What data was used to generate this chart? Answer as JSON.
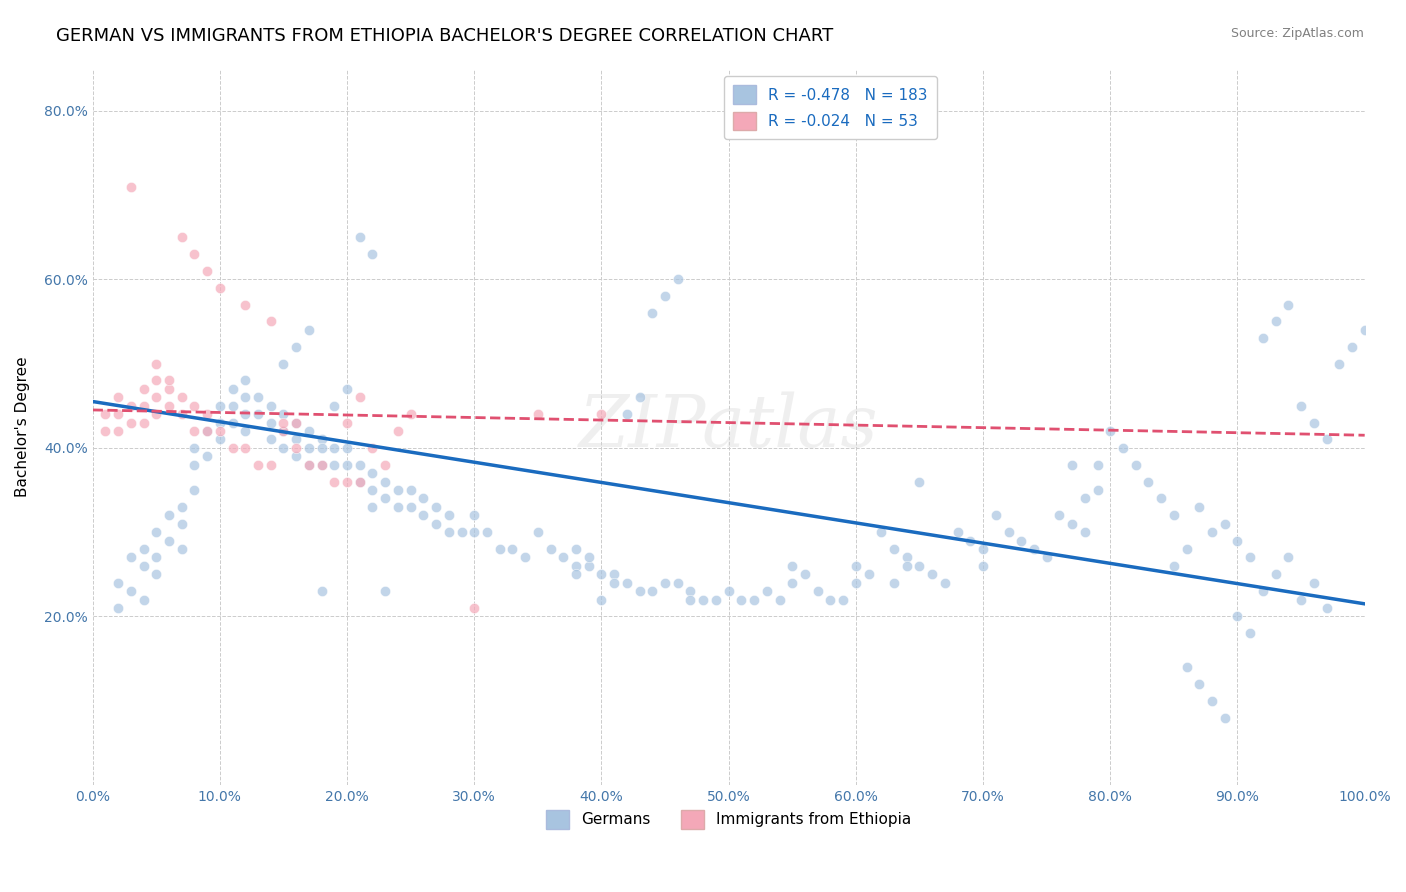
{
  "title": "GERMAN VS IMMIGRANTS FROM ETHIOPIA BACHELOR'S DEGREE CORRELATION CHART",
  "source": "Source: ZipAtlas.com",
  "ylabel": "Bachelor's Degree",
  "watermark": "ZIPatlas",
  "blue_R": -0.478,
  "blue_N": 183,
  "pink_R": -0.024,
  "pink_N": 53,
  "blue_color": "#a8c4e0",
  "pink_color": "#f4a8b8",
  "blue_line_color": "#1a6bbf",
  "pink_line_color": "#e05070",
  "legend_blue_label": "Germans",
  "legend_pink_label": "Immigrants from Ethiopia",
  "xlim": [
    0,
    1.0
  ],
  "ylim": [
    0,
    0.85
  ],
  "background_color": "#ffffff",
  "grid_color": "#cccccc",
  "blue_scatter_x": [
    0.02,
    0.02,
    0.03,
    0.03,
    0.04,
    0.04,
    0.04,
    0.05,
    0.05,
    0.05,
    0.06,
    0.06,
    0.07,
    0.07,
    0.07,
    0.08,
    0.08,
    0.08,
    0.09,
    0.09,
    0.1,
    0.1,
    0.1,
    0.11,
    0.11,
    0.11,
    0.12,
    0.12,
    0.12,
    0.12,
    0.13,
    0.13,
    0.14,
    0.14,
    0.14,
    0.15,
    0.15,
    0.15,
    0.16,
    0.16,
    0.16,
    0.17,
    0.17,
    0.17,
    0.18,
    0.18,
    0.18,
    0.19,
    0.19,
    0.2,
    0.2,
    0.21,
    0.21,
    0.22,
    0.22,
    0.22,
    0.23,
    0.23,
    0.24,
    0.24,
    0.25,
    0.25,
    0.26,
    0.26,
    0.27,
    0.27,
    0.28,
    0.28,
    0.29,
    0.3,
    0.3,
    0.31,
    0.32,
    0.33,
    0.34,
    0.35,
    0.36,
    0.37,
    0.38,
    0.38,
    0.39,
    0.4,
    0.41,
    0.42,
    0.43,
    0.44,
    0.45,
    0.46,
    0.47,
    0.48,
    0.49,
    0.5,
    0.51,
    0.52,
    0.53,
    0.54,
    0.55,
    0.55,
    0.56,
    0.57,
    0.58,
    0.59,
    0.6,
    0.6,
    0.61,
    0.62,
    0.63,
    0.64,
    0.65,
    0.66,
    0.67,
    0.68,
    0.69,
    0.7,
    0.7,
    0.71,
    0.72,
    0.73,
    0.74,
    0.75,
    0.76,
    0.77,
    0.78,
    0.79,
    0.8,
    0.81,
    0.82,
    0.83,
    0.84,
    0.85,
    0.86,
    0.87,
    0.88,
    0.89,
    0.9,
    0.91,
    0.92,
    0.93,
    0.94,
    0.95,
    0.96,
    0.97,
    0.98,
    0.99,
    1.0,
    0.15,
    0.16,
    0.17,
    0.18,
    0.19,
    0.2,
    0.21,
    0.22,
    0.23,
    0.38,
    0.39,
    0.4,
    0.41,
    0.42,
    0.43,
    0.44,
    0.45,
    0.46,
    0.47,
    0.63,
    0.64,
    0.65,
    0.77,
    0.78,
    0.79,
    0.87,
    0.93,
    0.94,
    0.95,
    0.96,
    0.85,
    0.86,
    0.88,
    0.89,
    0.9,
    0.91,
    0.92,
    0.97
  ],
  "blue_scatter_y": [
    0.24,
    0.21,
    0.27,
    0.23,
    0.28,
    0.26,
    0.22,
    0.3,
    0.27,
    0.25,
    0.32,
    0.29,
    0.33,
    0.31,
    0.28,
    0.4,
    0.38,
    0.35,
    0.42,
    0.39,
    0.45,
    0.43,
    0.41,
    0.47,
    0.45,
    0.43,
    0.48,
    0.46,
    0.44,
    0.42,
    0.46,
    0.44,
    0.45,
    0.43,
    0.41,
    0.44,
    0.42,
    0.4,
    0.43,
    0.41,
    0.39,
    0.42,
    0.4,
    0.38,
    0.41,
    0.4,
    0.38,
    0.4,
    0.38,
    0.4,
    0.38,
    0.38,
    0.36,
    0.37,
    0.35,
    0.33,
    0.36,
    0.34,
    0.35,
    0.33,
    0.35,
    0.33,
    0.34,
    0.32,
    0.33,
    0.31,
    0.32,
    0.3,
    0.3,
    0.32,
    0.3,
    0.3,
    0.28,
    0.28,
    0.27,
    0.3,
    0.28,
    0.27,
    0.28,
    0.26,
    0.26,
    0.25,
    0.25,
    0.24,
    0.23,
    0.23,
    0.24,
    0.24,
    0.23,
    0.22,
    0.22,
    0.23,
    0.22,
    0.22,
    0.23,
    0.22,
    0.26,
    0.24,
    0.25,
    0.23,
    0.22,
    0.22,
    0.26,
    0.24,
    0.25,
    0.3,
    0.28,
    0.27,
    0.26,
    0.25,
    0.24,
    0.3,
    0.29,
    0.28,
    0.26,
    0.32,
    0.3,
    0.29,
    0.28,
    0.27,
    0.32,
    0.31,
    0.3,
    0.38,
    0.42,
    0.4,
    0.38,
    0.36,
    0.34,
    0.32,
    0.14,
    0.12,
    0.1,
    0.08,
    0.2,
    0.18,
    0.53,
    0.55,
    0.57,
    0.45,
    0.43,
    0.41,
    0.5,
    0.52,
    0.54,
    0.5,
    0.52,
    0.54,
    0.23,
    0.45,
    0.47,
    0.65,
    0.63,
    0.23,
    0.25,
    0.27,
    0.22,
    0.24,
    0.44,
    0.46,
    0.56,
    0.58,
    0.6,
    0.22,
    0.24,
    0.26,
    0.36,
    0.38,
    0.34,
    0.35,
    0.33,
    0.25,
    0.27,
    0.22,
    0.24,
    0.26,
    0.28,
    0.3,
    0.31,
    0.29,
    0.27,
    0.23,
    0.21
  ],
  "pink_scatter_x": [
    0.01,
    0.01,
    0.02,
    0.02,
    0.02,
    0.03,
    0.03,
    0.04,
    0.04,
    0.04,
    0.05,
    0.05,
    0.05,
    0.06,
    0.06,
    0.07,
    0.07,
    0.08,
    0.08,
    0.09,
    0.09,
    0.1,
    0.11,
    0.12,
    0.13,
    0.14,
    0.15,
    0.16,
    0.17,
    0.18,
    0.19,
    0.2,
    0.21,
    0.22,
    0.23,
    0.24,
    0.25,
    0.3,
    0.35,
    0.4,
    0.15,
    0.16,
    0.2,
    0.07,
    0.08,
    0.09,
    0.1,
    0.03,
    0.12,
    0.14,
    0.05,
    0.06,
    0.21
  ],
  "pink_scatter_y": [
    0.44,
    0.42,
    0.46,
    0.44,
    0.42,
    0.45,
    0.43,
    0.47,
    0.45,
    0.43,
    0.48,
    0.46,
    0.44,
    0.47,
    0.45,
    0.46,
    0.44,
    0.45,
    0.42,
    0.44,
    0.42,
    0.42,
    0.4,
    0.4,
    0.38,
    0.38,
    0.42,
    0.4,
    0.38,
    0.38,
    0.36,
    0.36,
    0.36,
    0.4,
    0.38,
    0.42,
    0.44,
    0.21,
    0.44,
    0.44,
    0.43,
    0.43,
    0.43,
    0.65,
    0.63,
    0.61,
    0.59,
    0.71,
    0.57,
    0.55,
    0.5,
    0.48,
    0.46
  ],
  "title_fontsize": 13,
  "axis_label_fontsize": 11,
  "tick_fontsize": 10,
  "legend_fontsize": 11,
  "scatter_size": 55,
  "scatter_alpha": 0.7,
  "blue_trend_y_start": 0.455,
  "blue_trend_y_end": 0.215,
  "pink_trend_y_start": 0.445,
  "pink_trend_y_end": 0.415
}
